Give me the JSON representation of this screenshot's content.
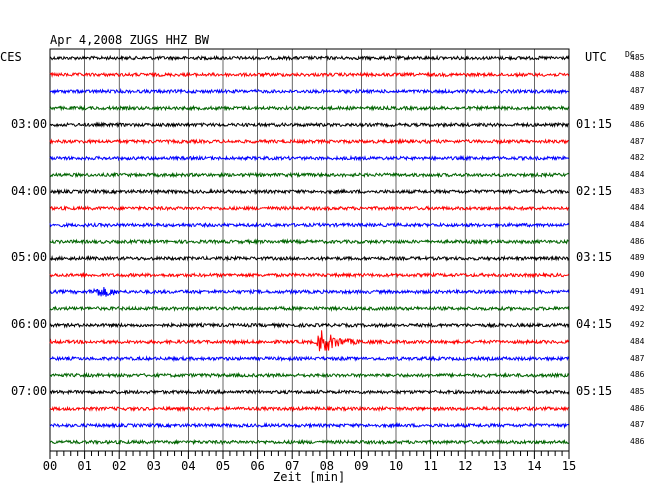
{
  "chart_data": {
    "type": "line",
    "title": "Apr 4,2008   ZUGS HHZ BW",
    "left_corner_label": "CES",
    "right_corner_label": "UTC",
    "dc_label": "DC",
    "xlabel": "Zeit [min]",
    "x_ticks": [
      "00",
      "01",
      "02",
      "03",
      "04",
      "05",
      "06",
      "07",
      "08",
      "09",
      "10",
      "11",
      "12",
      "13",
      "14",
      "15"
    ],
    "xlim": [
      0,
      15
    ],
    "traces": [
      {
        "dc": "485",
        "color": "black",
        "left_time": "",
        "right_time": ""
      },
      {
        "dc": "488",
        "color": "red",
        "left_time": "",
        "right_time": ""
      },
      {
        "dc": "487",
        "color": "blue",
        "left_time": "",
        "right_time": ""
      },
      {
        "dc": "489",
        "color": "green",
        "left_time": "",
        "right_time": ""
      },
      {
        "dc": "486",
        "color": "black",
        "left_time": "03:00",
        "right_time": "01:15"
      },
      {
        "dc": "487",
        "color": "red",
        "left_time": "",
        "right_time": ""
      },
      {
        "dc": "482",
        "color": "blue",
        "left_time": "",
        "right_time": ""
      },
      {
        "dc": "484",
        "color": "green",
        "left_time": "",
        "right_time": ""
      },
      {
        "dc": "483",
        "color": "black",
        "left_time": "04:00",
        "right_time": "02:15"
      },
      {
        "dc": "484",
        "color": "red",
        "left_time": "",
        "right_time": ""
      },
      {
        "dc": "484",
        "color": "blue",
        "left_time": "",
        "right_time": ""
      },
      {
        "dc": "486",
        "color": "green",
        "left_time": "",
        "right_time": ""
      },
      {
        "dc": "489",
        "color": "black",
        "left_time": "05:00",
        "right_time": "03:15"
      },
      {
        "dc": "490",
        "color": "red",
        "left_time": "",
        "right_time": ""
      },
      {
        "dc": "491",
        "color": "blue",
        "left_time": "",
        "right_time": ""
      },
      {
        "dc": "492",
        "color": "green",
        "left_time": "",
        "right_time": ""
      },
      {
        "dc": "492",
        "color": "black",
        "left_time": "06:00",
        "right_time": "04:15"
      },
      {
        "dc": "484",
        "color": "red",
        "left_time": "",
        "right_time": ""
      },
      {
        "dc": "487",
        "color": "blue",
        "left_time": "",
        "right_time": ""
      },
      {
        "dc": "486",
        "color": "green",
        "left_time": "",
        "right_time": ""
      },
      {
        "dc": "485",
        "color": "black",
        "left_time": "07:00",
        "right_time": "05:15"
      },
      {
        "dc": "486",
        "color": "red",
        "left_time": "",
        "right_time": ""
      },
      {
        "dc": "487",
        "color": "blue",
        "left_time": "",
        "right_time": ""
      },
      {
        "dc": "486",
        "color": "green",
        "left_time": "",
        "right_time": ""
      }
    ],
    "events": [
      {
        "trace": 14,
        "start_min": 1.1,
        "end_min": 2.0,
        "amplitude": "small"
      },
      {
        "trace": 17,
        "start_min": 7.7,
        "end_min": 9.3,
        "amplitude": "large"
      }
    ],
    "colors": {
      "black": "#000000",
      "red": "#ff0000",
      "blue": "#0000ff",
      "green": "#006400"
    },
    "grid": true
  }
}
